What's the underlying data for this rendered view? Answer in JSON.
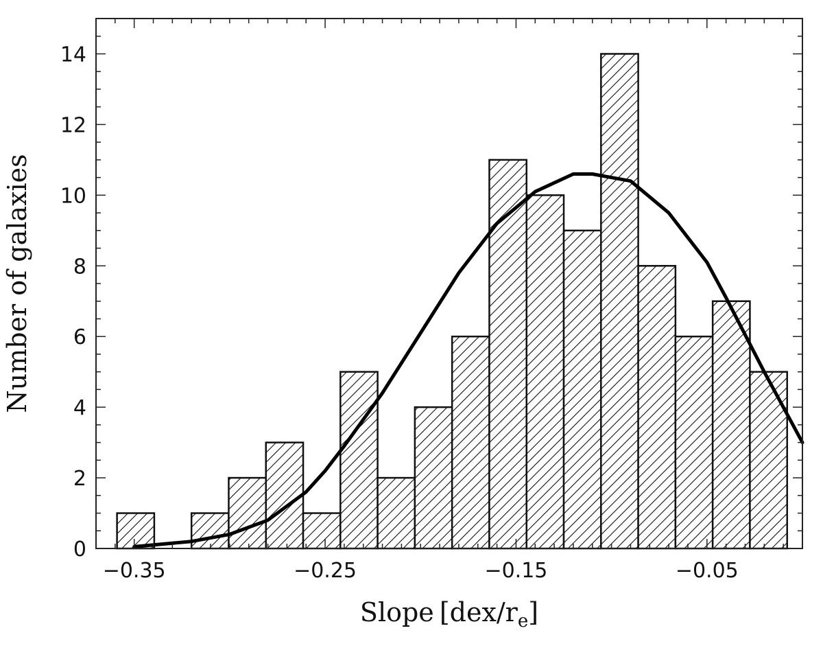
{
  "chart_data": {
    "type": "bar",
    "xlabel": "Slope",
    "xlabel_unit": "[dex/r",
    "xlabel_unit_sub": "e",
    "xlabel_unit_close": "]",
    "ylabel": "Number of galaxies",
    "xlim": [
      -0.37,
      0.0
    ],
    "ylim": [
      0,
      15
    ],
    "bin_width": 0.0195,
    "x_ticks": [
      -0.35,
      -0.25,
      -0.15,
      -0.05
    ],
    "x_tick_labels": [
      "−0.35",
      "−0.25",
      "−0.15",
      "−0.05"
    ],
    "y_ticks": [
      0,
      2,
      4,
      6,
      8,
      10,
      12,
      14
    ],
    "y_tick_labels": [
      "0",
      "2",
      "4",
      "6",
      "8",
      "10",
      "12",
      "14"
    ],
    "bins": [
      {
        "left": -0.359,
        "value": 1
      },
      {
        "left": -0.3395,
        "value": 0
      },
      {
        "left": -0.32,
        "value": 1
      },
      {
        "left": -0.3005,
        "value": 2
      },
      {
        "left": -0.281,
        "value": 3
      },
      {
        "left": -0.2615,
        "value": 1
      },
      {
        "left": -0.242,
        "value": 5
      },
      {
        "left": -0.2225,
        "value": 2
      },
      {
        "left": -0.203,
        "value": 4
      },
      {
        "left": -0.1835,
        "value": 6
      },
      {
        "left": -0.164,
        "value": 11
      },
      {
        "left": -0.1445,
        "value": 10
      },
      {
        "left": -0.125,
        "value": 9
      },
      {
        "left": -0.1055,
        "value": 14
      },
      {
        "left": -0.086,
        "value": 8
      },
      {
        "left": -0.0665,
        "value": 6
      },
      {
        "left": -0.047,
        "value": 7
      },
      {
        "left": -0.0275,
        "value": 5
      }
    ],
    "fit_curve": {
      "x": [
        -0.35,
        -0.32,
        -0.3,
        -0.28,
        -0.26,
        -0.25,
        -0.24,
        -0.22,
        -0.2,
        -0.18,
        -0.16,
        -0.14,
        -0.12,
        -0.11,
        -0.09,
        -0.07,
        -0.05,
        -0.04,
        -0.02,
        0.0
      ],
      "y": [
        0.05,
        0.2,
        0.4,
        0.8,
        1.6,
        2.2,
        2.9,
        4.4,
        6.1,
        7.8,
        9.2,
        10.1,
        10.6,
        10.6,
        10.4,
        9.5,
        8.1,
        7.1,
        5.0,
        3.0
      ]
    },
    "grid": false,
    "legend": "none"
  }
}
